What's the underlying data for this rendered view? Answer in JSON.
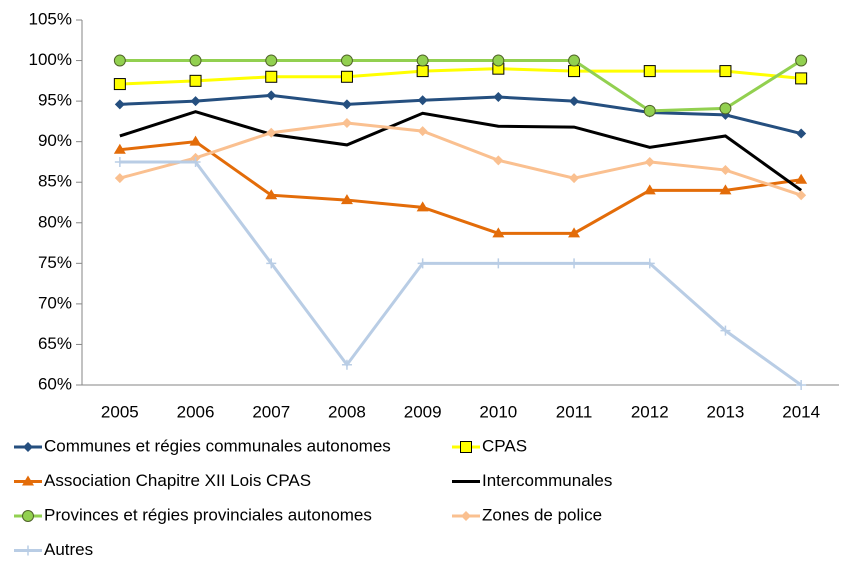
{
  "chart_data": {
    "type": "line",
    "categories": [
      "2005",
      "2006",
      "2007",
      "2008",
      "2009",
      "2010",
      "2011",
      "2012",
      "2013",
      "2014"
    ],
    "ylim": [
      60,
      105
    ],
    "yticks": [
      {
        "value": 60,
        "label": "60%"
      },
      {
        "value": 65,
        "label": "65%"
      },
      {
        "value": 70,
        "label": "70%"
      },
      {
        "value": 75,
        "label": "75%"
      },
      {
        "value": 80,
        "label": "80%"
      },
      {
        "value": 85,
        "label": "85%"
      },
      {
        "value": 90,
        "label": "90%"
      },
      {
        "value": 95,
        "label": "95%"
      },
      {
        "value": 100,
        "label": "100%"
      },
      {
        "value": 105,
        "label": "105%"
      }
    ],
    "grid": false,
    "legend": "bottom",
    "series": [
      {
        "name": "Communes et régies communales autonomes",
        "color": "#254f7f",
        "marker": "diamond",
        "values": [
          94.6,
          95.0,
          95.7,
          94.6,
          95.1,
          95.5,
          95.0,
          93.6,
          93.3,
          91.0
        ]
      },
      {
        "name": "CPAS",
        "color": "#ffff00",
        "marker": "square",
        "values": [
          97.1,
          97.5,
          98.0,
          98.0,
          98.7,
          99.0,
          98.7,
          98.7,
          98.7,
          97.8
        ]
      },
      {
        "name": "Association Chapitre XII Lois CPAS",
        "color": "#e36c09",
        "marker": "triangle",
        "values": [
          89.0,
          90.0,
          83.4,
          82.8,
          81.9,
          78.7,
          78.7,
          84.0,
          84.0,
          85.3
        ]
      },
      {
        "name": "Intercommunales",
        "color": "#000000",
        "marker": "none",
        "values": [
          90.7,
          93.7,
          90.9,
          89.6,
          93.5,
          91.9,
          91.8,
          89.3,
          90.7,
          84.0
        ]
      },
      {
        "name": "Provinces et régies provinciales autonomes",
        "color": "#92d050",
        "marker": "circle",
        "values": [
          100,
          100,
          100,
          100,
          100,
          100,
          100,
          93.8,
          94.1,
          100
        ]
      },
      {
        "name": "Zones de police",
        "color": "#fac090",
        "marker": "diamond",
        "values": [
          85.5,
          88.0,
          91.1,
          92.3,
          91.3,
          87.7,
          85.5,
          87.5,
          86.5,
          83.4
        ]
      },
      {
        "name": "Autres",
        "color": "#b9cde5",
        "marker": "plus",
        "values": [
          87.5,
          87.5,
          75,
          62.5,
          75,
          75,
          75,
          75,
          66.7,
          60
        ]
      }
    ]
  }
}
